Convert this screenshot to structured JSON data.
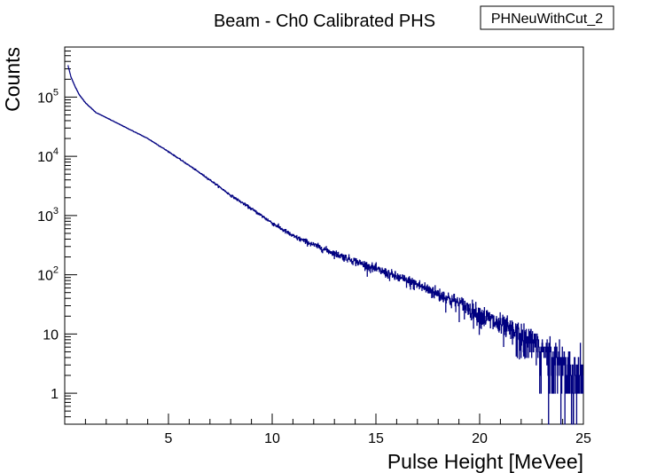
{
  "canvas": {
    "background": "#ffffff"
  },
  "stat_box": {
    "label": "PHNeuWithCut_2"
  },
  "chart_data": {
    "type": "line",
    "title": "Beam - Ch0 Calibrated PHS",
    "xlabel": "Pulse Height [MeVee]",
    "ylabel": "Counts",
    "xlim": [
      0,
      25
    ],
    "ylim": [
      0.3,
      700000
    ],
    "y_scale": "log",
    "grid": false,
    "series_color": "#000080",
    "x_ticks": [
      {
        "value": 5,
        "label": "5"
      },
      {
        "value": 10,
        "label": "10"
      },
      {
        "value": 15,
        "label": "15"
      },
      {
        "value": 20,
        "label": "20"
      },
      {
        "value": 25,
        "label": "25"
      }
    ],
    "y_ticks": [
      {
        "value": 1,
        "base": "1",
        "exp": ""
      },
      {
        "value": 10,
        "base": "10",
        "exp": ""
      },
      {
        "value": 100,
        "base": "10",
        "exp": "2"
      },
      {
        "value": 1000,
        "base": "10",
        "exp": "3"
      },
      {
        "value": 10000,
        "base": "10",
        "exp": "4"
      },
      {
        "value": 100000,
        "base": "10",
        "exp": "5"
      }
    ],
    "series": [
      {
        "x": [
          0.15,
          0.3,
          0.5,
          0.7,
          1.0,
          1.5,
          2.0,
          3.0,
          4.0,
          5.0,
          6.0,
          7.0,
          8.0,
          9.0,
          10.0,
          11.0,
          12.0,
          13.0,
          14.0,
          15.0,
          16.0,
          17.0,
          18.0,
          19.0,
          20.0,
          21.0,
          22.0,
          23.0,
          24.0,
          25.0
        ],
        "values": [
          350000,
          220000,
          150000,
          110000,
          80000,
          55000,
          45000,
          30000,
          20000,
          12000,
          7000,
          4000,
          2200,
          1300,
          750,
          450,
          320,
          230,
          170,
          125,
          92,
          68,
          48,
          33,
          22,
          14,
          9,
          5.5,
          3.2,
          2
        ]
      }
    ]
  }
}
